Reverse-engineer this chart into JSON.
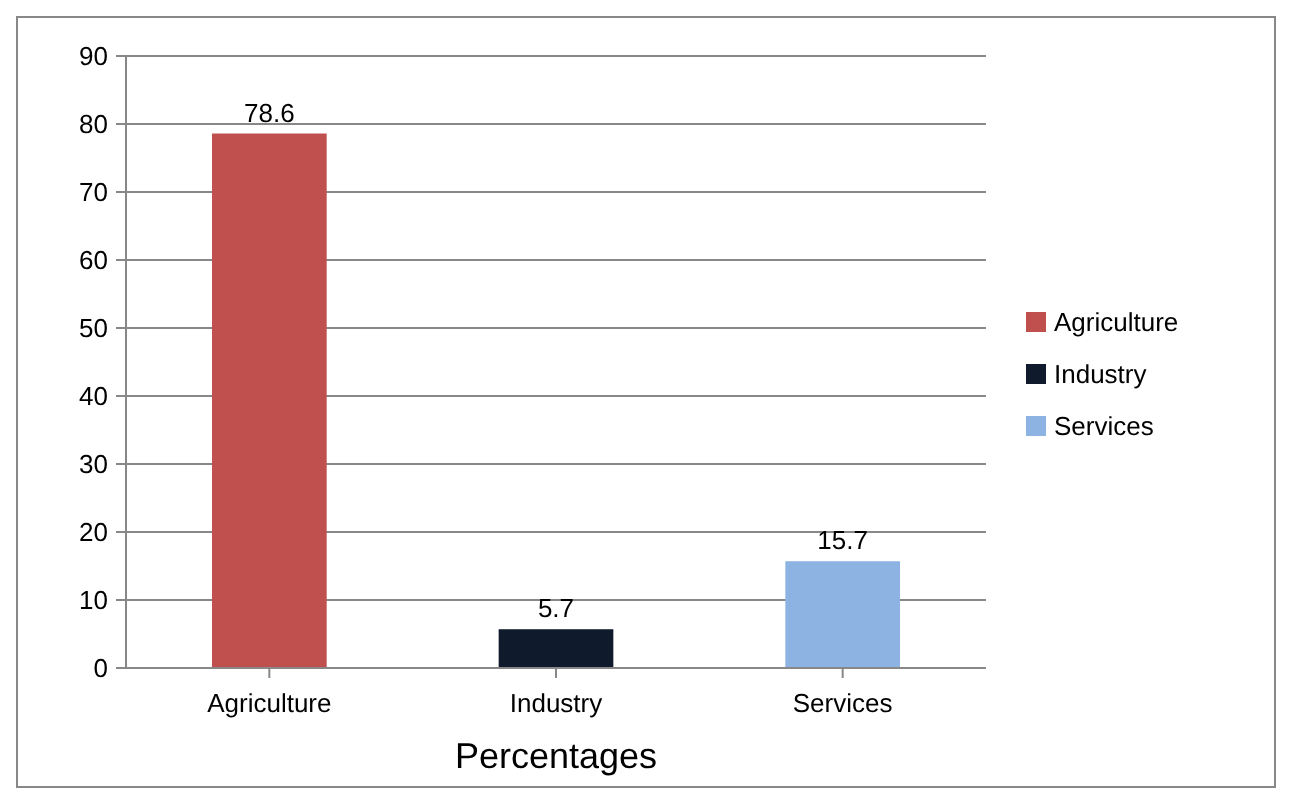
{
  "chart_data": {
    "type": "bar",
    "xlabel": "Percentages",
    "categories": [
      "Agriculture",
      "Industry",
      "Services"
    ],
    "series": [
      {
        "name": "Agriculture",
        "color": "#c0504d",
        "values": [
          78.6,
          null,
          null
        ]
      },
      {
        "name": "Industry",
        "color": "#0f1a2c",
        "values": [
          null,
          5.7,
          null
        ]
      },
      {
        "name": "Services",
        "color": "#8db3e2",
        "values": [
          null,
          null,
          15.7
        ]
      }
    ],
    "stacked": true,
    "ylim": [
      0,
      90
    ],
    "yticks": [
      0,
      10,
      20,
      30,
      40,
      50,
      60,
      70,
      80,
      90
    ],
    "grid": "y",
    "legend": "right",
    "data_labels": true
  }
}
